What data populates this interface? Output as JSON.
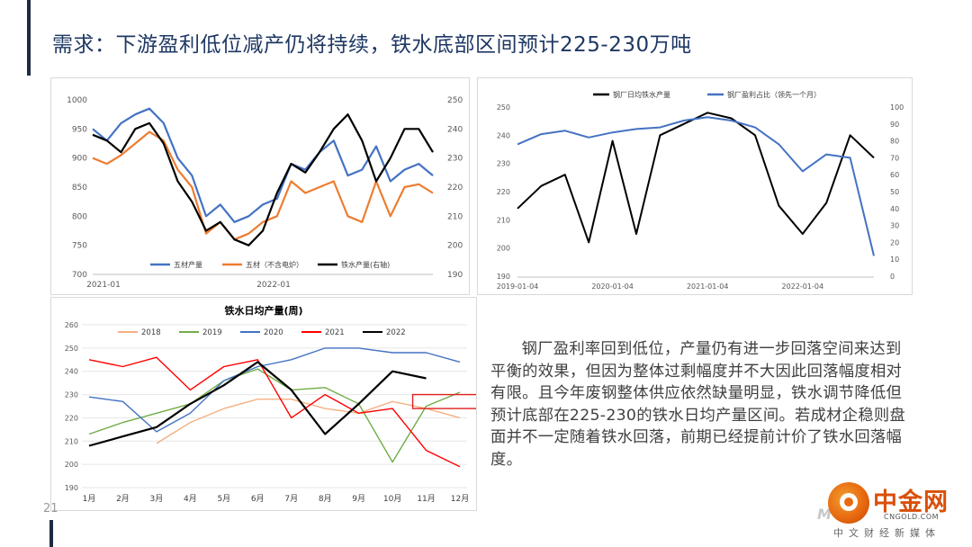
{
  "page": {
    "title": "需求：下游盈利低位减产仍将持续，铁水底部区间预计225-230万吨",
    "paragraph": "钢厂盈利率回到低位，产量仍有进一步回落空间来达到平衡的效果，但因为整体过剩幅度并不大因此回落幅度相对有限。且今年废钢整体供应依然缺量明显，铁水调节降低但预计底部在225-230的铁水日均产量区间。若成材企稳则盘面并不一定随着铁水回落，前期已经提前计价了铁水回落幅度。",
    "page_number": "21",
    "logo": {
      "name": "中金网",
      "url": "CNGOLD.COM",
      "subtitle": "中文财经新媒体",
      "mark": "M"
    }
  },
  "colors": {
    "title": "#1f3864",
    "blue": "#4472c4",
    "orange": "#ed7d31",
    "black": "#000000",
    "red": "#ff0000",
    "green": "#70ad47",
    "peach": "#f4b183"
  },
  "chart_data": [
    {
      "type": "line",
      "title": "",
      "x": [
        "2021-01",
        "2021-02",
        "2021-03",
        "2021-04",
        "2021-05",
        "2021-06",
        "2021-07",
        "2021-08",
        "2021-09",
        "2021-10",
        "2021-11",
        "2021-12",
        "2022-01",
        "2022-02",
        "2022-03",
        "2022-04",
        "2022-05",
        "2022-06",
        "2022-07",
        "2022-08",
        "2022-09",
        "2022-10",
        "2022-11",
        "2022-12",
        "2023-01"
      ],
      "xticks": [
        "2021-01",
        "2022-01"
      ],
      "y_left": {
        "lim": [
          700,
          1000
        ],
        "ticks": [
          700,
          750,
          800,
          850,
          900,
          950,
          1000
        ]
      },
      "y_right": {
        "lim": [
          190,
          250
        ],
        "ticks": [
          190,
          200,
          210,
          220,
          230,
          240,
          250
        ]
      },
      "legend": "bottom",
      "series": [
        {
          "name": "五材产量",
          "axis": "left",
          "color": "#4472c4",
          "values": [
            950,
            930,
            960,
            975,
            985,
            960,
            900,
            870,
            800,
            820,
            790,
            800,
            820,
            830,
            890,
            880,
            910,
            930,
            870,
            880,
            920,
            860,
            880,
            890,
            870
          ]
        },
        {
          "name": "五材（不含电炉）",
          "axis": "left",
          "color": "#ed7d31",
          "values": [
            900,
            890,
            905,
            925,
            945,
            930,
            880,
            850,
            770,
            790,
            760,
            770,
            790,
            800,
            860,
            840,
            850,
            860,
            800,
            790,
            860,
            800,
            850,
            855,
            840
          ]
        },
        {
          "name": "铁水产量(右轴)",
          "axis": "right",
          "color": "#000000",
          "values": [
            238,
            236,
            232,
            240,
            242,
            235,
            222,
            215,
            205,
            208,
            202,
            200,
            205,
            218,
            228,
            225,
            232,
            240,
            245,
            236,
            222,
            230,
            240,
            240,
            232
          ]
        }
      ]
    },
    {
      "type": "line",
      "title": "",
      "x": [
        "2019-01",
        "2019-04",
        "2019-07",
        "2019-10",
        "2020-01",
        "2020-04",
        "2020-07",
        "2020-10",
        "2021-01",
        "2021-04",
        "2021-07",
        "2021-10",
        "2022-01",
        "2022-04",
        "2022-07",
        "2022-10"
      ],
      "xticks": [
        "2019-01-04",
        "2020-01-04",
        "2021-01-04",
        "2022-01-04"
      ],
      "y_left": {
        "lim": [
          190,
          250
        ],
        "ticks": [
          190,
          200,
          210,
          220,
          230,
          240,
          250
        ]
      },
      "y_right": {
        "lim": [
          0,
          100
        ],
        "ticks": [
          0,
          10,
          20,
          30,
          40,
          50,
          60,
          70,
          80,
          90,
          100
        ]
      },
      "legend": "top",
      "series": [
        {
          "name": "钢厂日均铁水产量",
          "axis": "left",
          "color": "#000000",
          "values": [
            214,
            222,
            226,
            202,
            238,
            205,
            240,
            244,
            248,
            246,
            240,
            215,
            205,
            216,
            240,
            232
          ]
        },
        {
          "name": "钢厂盈利占比（领先一个月）",
          "axis": "right",
          "color": "#4472c4",
          "values": [
            78,
            84,
            86,
            82,
            85,
            87,
            88,
            92,
            94,
            92,
            88,
            78,
            62,
            72,
            70,
            12
          ]
        }
      ]
    },
    {
      "type": "line",
      "title": "铁水日均产量(周)",
      "categories": [
        "1月",
        "2月",
        "3月",
        "4月",
        "5月",
        "6月",
        "7月",
        "8月",
        "9月",
        "10月",
        "11月",
        "12月"
      ],
      "y": {
        "lim": [
          190,
          260
        ],
        "ticks": [
          190,
          200,
          210,
          220,
          230,
          240,
          250,
          260
        ]
      },
      "legend": "top",
      "series": [
        {
          "name": "2018",
          "color": "#f4b183",
          "values": [
            null,
            null,
            209,
            218,
            224,
            228,
            228,
            224,
            222,
            227,
            224,
            220
          ]
        },
        {
          "name": "2019",
          "color": "#70ad47",
          "values": [
            213,
            218,
            222,
            226,
            236,
            241,
            232,
            233,
            226,
            201,
            225,
            231
          ]
        },
        {
          "name": "2020",
          "color": "#4472c4",
          "values": [
            229,
            227,
            214,
            222,
            236,
            242,
            245,
            250,
            250,
            248,
            248,
            244
          ]
        },
        {
          "name": "2021",
          "color": "#ff0000",
          "values": [
            245,
            242,
            246,
            232,
            242,
            245,
            220,
            230,
            222,
            224,
            206,
            199
          ]
        },
        {
          "name": "2022",
          "color": "#000000",
          "values": [
            208,
            212,
            216,
            226,
            234,
            244,
            232,
            213,
            226,
            240,
            237,
            null
          ]
        }
      ]
    }
  ]
}
